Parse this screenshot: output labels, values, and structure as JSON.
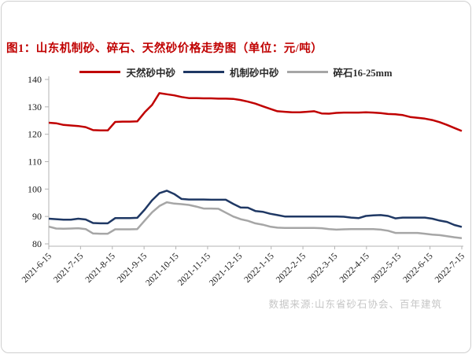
{
  "figure": {
    "title": "图1：山东机制砂、碎石、天然砂价格走势图（单位：元/吨）",
    "source_note": "数据来源:山东省砂石协会、百年建筑"
  },
  "chart_data": {
    "type": "line",
    "title": "山东机制砂、碎石、天然砂价格走势图",
    "unit": "元/吨",
    "ylim": [
      80,
      140
    ],
    "y_ticks": [
      140,
      130,
      120,
      110,
      100,
      90,
      80
    ],
    "grid": false,
    "legend_position": "top-center",
    "axis_color": "#b3b3b3",
    "x_tick_labels": [
      "2021-6-15",
      "2021-7-15",
      "2021-8-15",
      "2021-9-15",
      "2021-10-15",
      "2021-11-15",
      "2021-12-15",
      "2022-1-15",
      "2022-2-15",
      "2022-3-15",
      "2022-4-15",
      "2022-5-15",
      "2022-6-15",
      "2022-7-15"
    ],
    "x": [
      "2021-6-15",
      "2021-6-22",
      "2021-6-29",
      "2021-7-6",
      "2021-7-13",
      "2021-7-20",
      "2021-7-27",
      "2021-8-3",
      "2021-8-10",
      "2021-8-17",
      "2021-8-24",
      "2021-8-31",
      "2021-9-7",
      "2021-9-14",
      "2021-9-21",
      "2021-9-28",
      "2021-10-5",
      "2021-10-12",
      "2021-10-19",
      "2021-10-26",
      "2021-11-2",
      "2021-11-9",
      "2021-11-16",
      "2021-11-23",
      "2021-11-30",
      "2021-12-7",
      "2021-12-14",
      "2021-12-21",
      "2021-12-28",
      "2022-1-4",
      "2022-1-11",
      "2022-1-18",
      "2022-1-25",
      "2022-2-1",
      "2022-2-8",
      "2022-2-15",
      "2022-2-22",
      "2022-3-1",
      "2022-3-8",
      "2022-3-15",
      "2022-3-22",
      "2022-3-29",
      "2022-4-5",
      "2022-4-12",
      "2022-4-19",
      "2022-4-26",
      "2022-5-3",
      "2022-5-10",
      "2022-5-17",
      "2022-5-24",
      "2022-5-31",
      "2022-6-7",
      "2022-6-14",
      "2022-6-21",
      "2022-6-28",
      "2022-7-5",
      "2022-7-15"
    ],
    "series": [
      {
        "key": "natural-sand",
        "name": "天然砂中砂",
        "color": "#c00000",
        "values": [
          124.2,
          124.0,
          123.4,
          123.2,
          123.0,
          122.6,
          121.5,
          121.4,
          121.4,
          124.5,
          124.6,
          124.6,
          124.7,
          128.0,
          130.7,
          135.0,
          134.6,
          134.2,
          133.6,
          133.2,
          133.2,
          133.1,
          133.1,
          133.0,
          133.0,
          132.9,
          132.5,
          131.9,
          131.2,
          130.2,
          129.3,
          128.4,
          128.2,
          128.0,
          128.0,
          128.2,
          128.4,
          127.6,
          127.5,
          127.8,
          127.9,
          127.9,
          127.9,
          128.0,
          127.9,
          127.7,
          127.4,
          127.3,
          127.0,
          126.3,
          126.0,
          125.7,
          125.2,
          124.4,
          123.4,
          122.3,
          121.2
        ]
      },
      {
        "key": "machine-sand",
        "name": "机制砂中砂",
        "color": "#1f3864",
        "values": [
          89.2,
          89.0,
          88.8,
          88.8,
          89.2,
          88.9,
          87.6,
          87.5,
          87.5,
          89.4,
          89.4,
          89.4,
          89.5,
          92.5,
          95.9,
          98.5,
          99.4,
          98.2,
          96.4,
          96.2,
          96.2,
          96.2,
          96.1,
          96.1,
          96.1,
          94.6,
          93.3,
          93.2,
          92.0,
          91.7,
          91.0,
          90.5,
          90.0,
          90.0,
          90.0,
          90.0,
          90.0,
          90.0,
          90.0,
          90.0,
          89.9,
          89.6,
          89.4,
          90.2,
          90.4,
          90.5,
          90.2,
          89.3,
          89.6,
          89.6,
          89.6,
          89.6,
          89.2,
          88.5,
          88.0,
          86.9,
          86.2
        ]
      },
      {
        "key": "crushed-stone-16-25mm",
        "name": "碎石16-25mm",
        "color": "#a6a6a6",
        "values": [
          86.3,
          85.6,
          85.5,
          85.6,
          85.7,
          85.4,
          83.8,
          83.7,
          83.7,
          85.3,
          85.3,
          85.3,
          85.4,
          88.5,
          91.5,
          93.8,
          95.2,
          94.7,
          94.5,
          94.2,
          93.6,
          92.9,
          92.9,
          92.8,
          91.4,
          90.0,
          89.0,
          88.4,
          87.5,
          87.0,
          86.3,
          85.9,
          85.8,
          85.8,
          85.8,
          85.8,
          85.8,
          85.7,
          85.4,
          85.2,
          85.3,
          85.4,
          85.4,
          85.4,
          85.4,
          85.2,
          84.8,
          84.0,
          84.0,
          84.0,
          84.0,
          83.7,
          83.4,
          83.2,
          82.8,
          82.4,
          82.1
        ]
      }
    ]
  }
}
